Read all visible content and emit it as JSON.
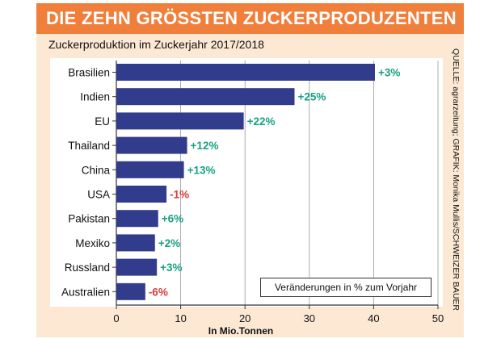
{
  "header": {
    "title": "DIE ZEHN GRÖSSTEN ZUCKERPRODUZENTEN"
  },
  "source": "QUELLE: agrarzeitung; GRAFIK: Monika Mullis/SCHWEIZER BAUER",
  "legend_note": "Veränderungen in % zum Vorjahr",
  "colors": {
    "bar": "#323c8c",
    "positive": "#1aa085",
    "negative": "#d93a3a",
    "header": "#f07f3c",
    "panel": "#fde8d4"
  },
  "chart_data": {
    "type": "bar",
    "orientation": "horizontal",
    "title": "Zuckerproduktion im Zuckerjahr 2017/2018",
    "xlabel": "In Mio.Tonnen",
    "ylabel": "",
    "xlim": [
      0,
      50
    ],
    "xticks": [
      "0",
      "10",
      "20",
      "30",
      "40",
      "50"
    ],
    "grid": true,
    "categories": [
      "Brasilien",
      "Indien",
      "EU",
      "Thailand",
      "China",
      "USA",
      "Pakistan",
      "Mexiko",
      "Russland",
      "Australien"
    ],
    "values": [
      40.2,
      27.7,
      19.8,
      11.0,
      10.5,
      7.8,
      6.5,
      6.0,
      6.3,
      4.5
    ],
    "changes": [
      "+3%",
      "+25%",
      "+22%",
      "+12%",
      "+13%",
      "-1%",
      "+6%",
      "+2%",
      "+3%",
      "-6%"
    ]
  }
}
